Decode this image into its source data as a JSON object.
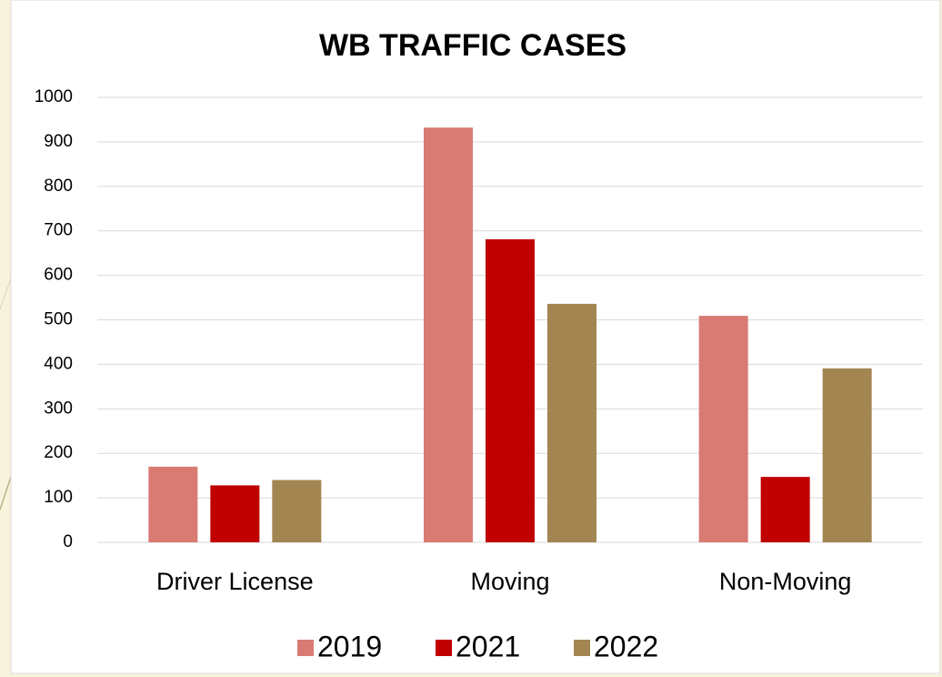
{
  "chart_data": {
    "type": "bar",
    "title": "WB TRAFFIC CASES",
    "categories": [
      "Driver License",
      "Moving",
      "Non-Moving"
    ],
    "series": [
      {
        "name": "2019",
        "color": "#d97a73",
        "values": [
          170,
          932,
          509
        ]
      },
      {
        "name": "2021",
        "color": "#c00000",
        "values": [
          128,
          681,
          147
        ]
      },
      {
        "name": "2022",
        "color": "#a28550",
        "values": [
          140,
          536,
          391
        ]
      }
    ],
    "ylim": [
      0,
      1000
    ],
    "yticks": [
      0,
      100,
      200,
      300,
      400,
      500,
      600,
      700,
      800,
      900,
      1000
    ],
    "grid": true,
    "legend": "bottom"
  }
}
